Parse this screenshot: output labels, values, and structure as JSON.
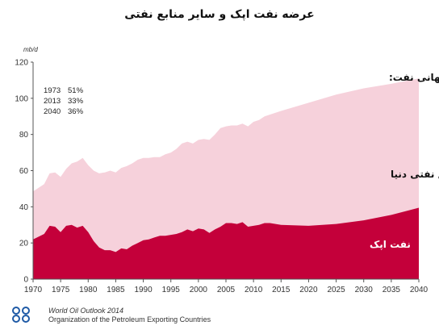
{
  "chart_data": {
    "type": "area",
    "title": "عرضه نفت اپک و سایر منابع نفتی",
    "ylabel": "mb/d",
    "xlim": [
      1970,
      2040
    ],
    "ylim": [
      0,
      120
    ],
    "yticks": [
      0,
      20,
      40,
      60,
      80,
      100,
      120
    ],
    "xticks": [
      1970,
      1975,
      1980,
      1985,
      1990,
      1995,
      2000,
      2005,
      2010,
      2015,
      2020,
      2025,
      2030,
      2035,
      2040
    ],
    "x": [
      1970,
      1972,
      1973,
      1974,
      1975,
      1976,
      1977,
      1978,
      1979,
      1980,
      1981,
      1982,
      1983,
      1984,
      1985,
      1986,
      1987,
      1988,
      1989,
      1990,
      1991,
      1992,
      1993,
      1994,
      1995,
      1996,
      1997,
      1998,
      1999,
      2000,
      2001,
      2002,
      2003,
      2004,
      2005,
      2006,
      2007,
      2008,
      2009,
      2010,
      2011,
      2012,
      2013,
      2015,
      2020,
      2025,
      2030,
      2035,
      2040
    ],
    "series": [
      {
        "name": "نفت اپک",
        "values": [
          22,
          25,
          29.5,
          29,
          26,
          29.5,
          30,
          28.5,
          29.5,
          26,
          21,
          17.5,
          16,
          16,
          15,
          17,
          16.5,
          18.5,
          20,
          21.5,
          22,
          23,
          24,
          24,
          24.5,
          25,
          26,
          27.5,
          26.5,
          28,
          27.5,
          25.5,
          27.5,
          29,
          31,
          31,
          30.5,
          31.5,
          29,
          29.5,
          30,
          31,
          31,
          30,
          29.5,
          30.5,
          32.5,
          35.5,
          39.5
        ]
      },
      {
        "name": "سایر منابع نفتی دنیا",
        "values": [
          48.5,
          52.5,
          58.5,
          59,
          56.5,
          61,
          64,
          65,
          67,
          63,
          60,
          58.5,
          59,
          60,
          59,
          61.5,
          62.5,
          64,
          66,
          67,
          67,
          67.5,
          67.5,
          69,
          70,
          72,
          75,
          76,
          75,
          77,
          77.5,
          77,
          80,
          83.5,
          84.5,
          85,
          85,
          86,
          84.5,
          87,
          88,
          90,
          91,
          93,
          97.5,
          102,
          105.5,
          108,
          111
        ]
      }
    ],
    "colors": {
      "opec": "#c4003a",
      "other": "#f6d1db"
    },
    "share_heading": "درصد عرضه نفت اپک نسبت به عرضه جهانی نفت:",
    "shares": [
      {
        "year": "1973",
        "pct": "51%"
      },
      {
        "year": "2013",
        "pct": "33%"
      },
      {
        "year": "2040",
        "pct": "36%"
      }
    ],
    "grid": false
  },
  "footer": {
    "line1": "World Oil Outlook 2014",
    "line2": "Organization of the Petroleum Exporting Countries"
  }
}
